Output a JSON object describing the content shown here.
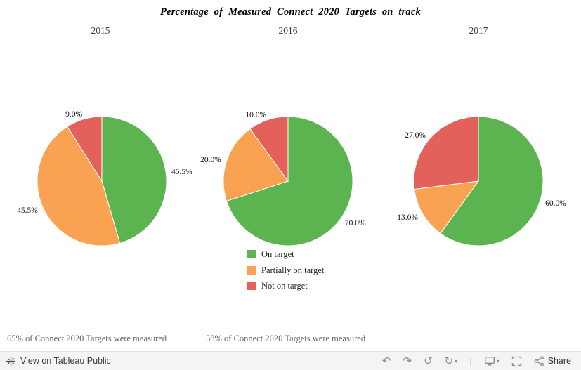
{
  "title": "Percentage of Measured Connect 2020 Targets on track",
  "legend": {
    "items": [
      {
        "label": "On target",
        "color": "#5bb450"
      },
      {
        "label": "Partially on target",
        "color": "#f9a352"
      },
      {
        "label": "Not on target",
        "color": "#e4605b"
      }
    ]
  },
  "chart_data": [
    {
      "type": "pie",
      "title": "2015",
      "labels": [
        "On target",
        "Partially on target",
        "Not on target"
      ],
      "values": [
        45.5,
        45.5,
        9.0
      ],
      "value_labels": [
        "45.5%",
        "45.5%",
        "9.0%"
      ],
      "colors": [
        "#5bb450",
        "#f9a352",
        "#e4605b"
      ],
      "start_angle": "12 o'clock",
      "direction": "clockwise"
    },
    {
      "type": "pie",
      "title": "2016",
      "labels": [
        "On target",
        "Partially on target",
        "Not on target"
      ],
      "values": [
        70.0,
        20.0,
        10.0
      ],
      "value_labels": [
        "70.0%",
        "20.0%",
        "10.0%"
      ],
      "colors": [
        "#5bb450",
        "#f9a352",
        "#e4605b"
      ],
      "start_angle": "12 o'clock",
      "direction": "clockwise"
    },
    {
      "type": "pie",
      "title": "2017",
      "labels": [
        "On target",
        "Partially on target",
        "Not on target"
      ],
      "values": [
        60.0,
        13.0,
        27.0
      ],
      "value_labels": [
        "60.0%",
        "13.0%",
        "27.0%"
      ],
      "colors": [
        "#5bb450",
        "#f9a352",
        "#e4605b"
      ],
      "start_angle": "12 o'clock",
      "direction": "clockwise"
    }
  ],
  "captions": {
    "left": "65% of Connect 2020 Targets were measured",
    "middle": "58% of Connect 2020 Targets were measured"
  },
  "toolbar": {
    "view_label": "View on Tableau Public",
    "share_label": "Share"
  }
}
